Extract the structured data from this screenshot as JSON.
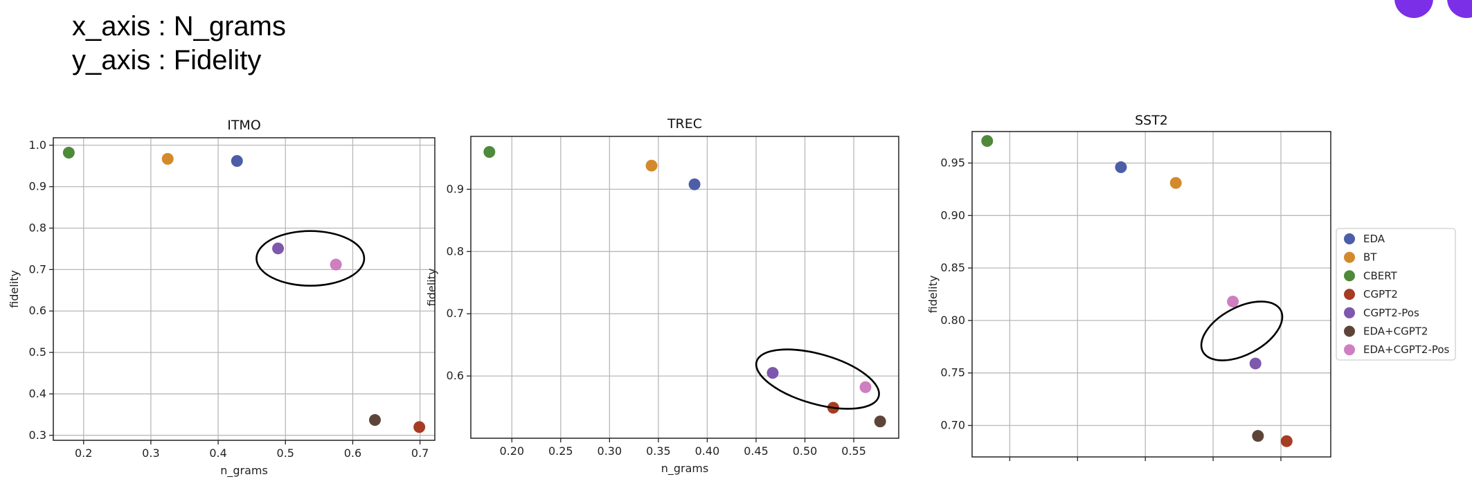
{
  "header": {
    "x_axis_note": "x_axis : N_grams",
    "y_axis_note": "y_axis : Fidelity"
  },
  "colors": {
    "EDA": "#4c5ea6",
    "BT": "#d38a2c",
    "CBERT": "#4e8a3a",
    "CGPT2": "#a63c23",
    "CGPT2-Pos": "#7d58ad",
    "EDA+CGPT2": "#5e4438",
    "EDA+CGPT2-Pos": "#cd7fc0",
    "window_controls": "#7b2fe6"
  },
  "legend": {
    "position": "right",
    "entries": [
      "EDA",
      "BT",
      "CBERT",
      "CGPT2",
      "CGPT2-Pos",
      "EDA+CGPT2",
      "EDA+CGPT2-Pos"
    ]
  },
  "chart_data": [
    {
      "type": "scatter",
      "title": "ITMO",
      "xlabel": "n_grams",
      "ylabel": "fidelity",
      "xlim": [
        0.155,
        0.722
      ],
      "ylim": [
        0.288,
        1.018
      ],
      "xticks": [
        0.2,
        0.3,
        0.4,
        0.5,
        0.6,
        0.7
      ],
      "yticks": [
        0.3,
        0.4,
        0.5,
        0.6,
        0.7,
        0.8,
        0.9,
        1.0
      ],
      "xtick_labels": [
        "0.2",
        "0.3",
        "0.4",
        "0.5",
        "0.6",
        "0.7"
      ],
      "ytick_labels": [
        "0.3",
        "0.4",
        "0.5",
        "0.6",
        "0.7",
        "0.8",
        "0.9",
        "1.0"
      ],
      "grid": true,
      "points": [
        {
          "series": "CBERT",
          "x": 0.178,
          "y": 0.982
        },
        {
          "series": "BT",
          "x": 0.325,
          "y": 0.967
        },
        {
          "series": "EDA",
          "x": 0.428,
          "y": 0.962
        },
        {
          "series": "CGPT2-Pos",
          "x": 0.489,
          "y": 0.751
        },
        {
          "series": "EDA+CGPT2-Pos",
          "x": 0.575,
          "y": 0.712
        },
        {
          "series": "EDA+CGPT2",
          "x": 0.633,
          "y": 0.337
        },
        {
          "series": "CGPT2",
          "x": 0.699,
          "y": 0.32
        }
      ],
      "highlight_ellipse": {
        "cx": 0.537,
        "cy": 0.727,
        "rx": 0.08,
        "ry": 0.066,
        "angle": 0
      }
    },
    {
      "type": "scatter",
      "title": "TREC",
      "xlabel": "n_grams",
      "ylabel": "fidelity",
      "xlim": [
        0.158,
        0.596
      ],
      "ylim": [
        0.5,
        0.985
      ],
      "xticks": [
        0.2,
        0.25,
        0.3,
        0.35,
        0.4,
        0.45,
        0.5,
        0.55
      ],
      "yticks": [
        0.6,
        0.7,
        0.8,
        0.9
      ],
      "xtick_labels": [
        "0.20",
        "0.25",
        "0.30",
        "0.35",
        "0.40",
        "0.45",
        "0.50",
        "0.55"
      ],
      "ytick_labels": [
        "0.6",
        "0.7",
        "0.8",
        "0.9"
      ],
      "grid": true,
      "points": [
        {
          "series": "CBERT",
          "x": 0.177,
          "y": 0.96
        },
        {
          "series": "BT",
          "x": 0.343,
          "y": 0.938
        },
        {
          "series": "EDA",
          "x": 0.387,
          "y": 0.908
        },
        {
          "series": "CGPT2-Pos",
          "x": 0.467,
          "y": 0.605
        },
        {
          "series": "EDA+CGPT2-Pos",
          "x": 0.562,
          "y": 0.582
        },
        {
          "series": "CGPT2",
          "x": 0.529,
          "y": 0.549
        },
        {
          "series": "EDA+CGPT2",
          "x": 0.577,
          "y": 0.527
        }
      ],
      "highlight_ellipse": {
        "cx": 0.513,
        "cy": 0.595,
        "rx": 0.065,
        "ry": 0.04,
        "angle": 16
      }
    },
    {
      "type": "scatter",
      "title": "SST2",
      "xlabel": "",
      "ylabel": "fidelity",
      "xlim": [
        0.0,
        1.0
      ],
      "ylim": [
        0.67,
        0.98
      ],
      "xticks": [
        0.105,
        0.294,
        0.483,
        0.672,
        0.861
      ],
      "yticks": [
        0.7,
        0.75,
        0.8,
        0.85,
        0.9,
        0.95
      ],
      "xtick_labels": [],
      "ytick_labels": [
        "0.70",
        "0.75",
        "0.80",
        "0.85",
        "0.90",
        "0.95"
      ],
      "grid": true,
      "points": [
        {
          "series": "CBERT",
          "x": 0.042,
          "y": 0.971
        },
        {
          "series": "EDA",
          "x": 0.415,
          "y": 0.946
        },
        {
          "series": "BT",
          "x": 0.568,
          "y": 0.931
        },
        {
          "series": "EDA+CGPT2-Pos",
          "x": 0.727,
          "y": 0.818
        },
        {
          "series": "CGPT2-Pos",
          "x": 0.79,
          "y": 0.759
        },
        {
          "series": "EDA+CGPT2",
          "x": 0.797,
          "y": 0.69
        },
        {
          "series": "CGPT2",
          "x": 0.877,
          "y": 0.685
        }
      ],
      "highlight_ellipse": {
        "cx": 0.752,
        "cy": 0.79,
        "rx": 0.066,
        "ry": 0.042,
        "angle": 62
      }
    }
  ]
}
